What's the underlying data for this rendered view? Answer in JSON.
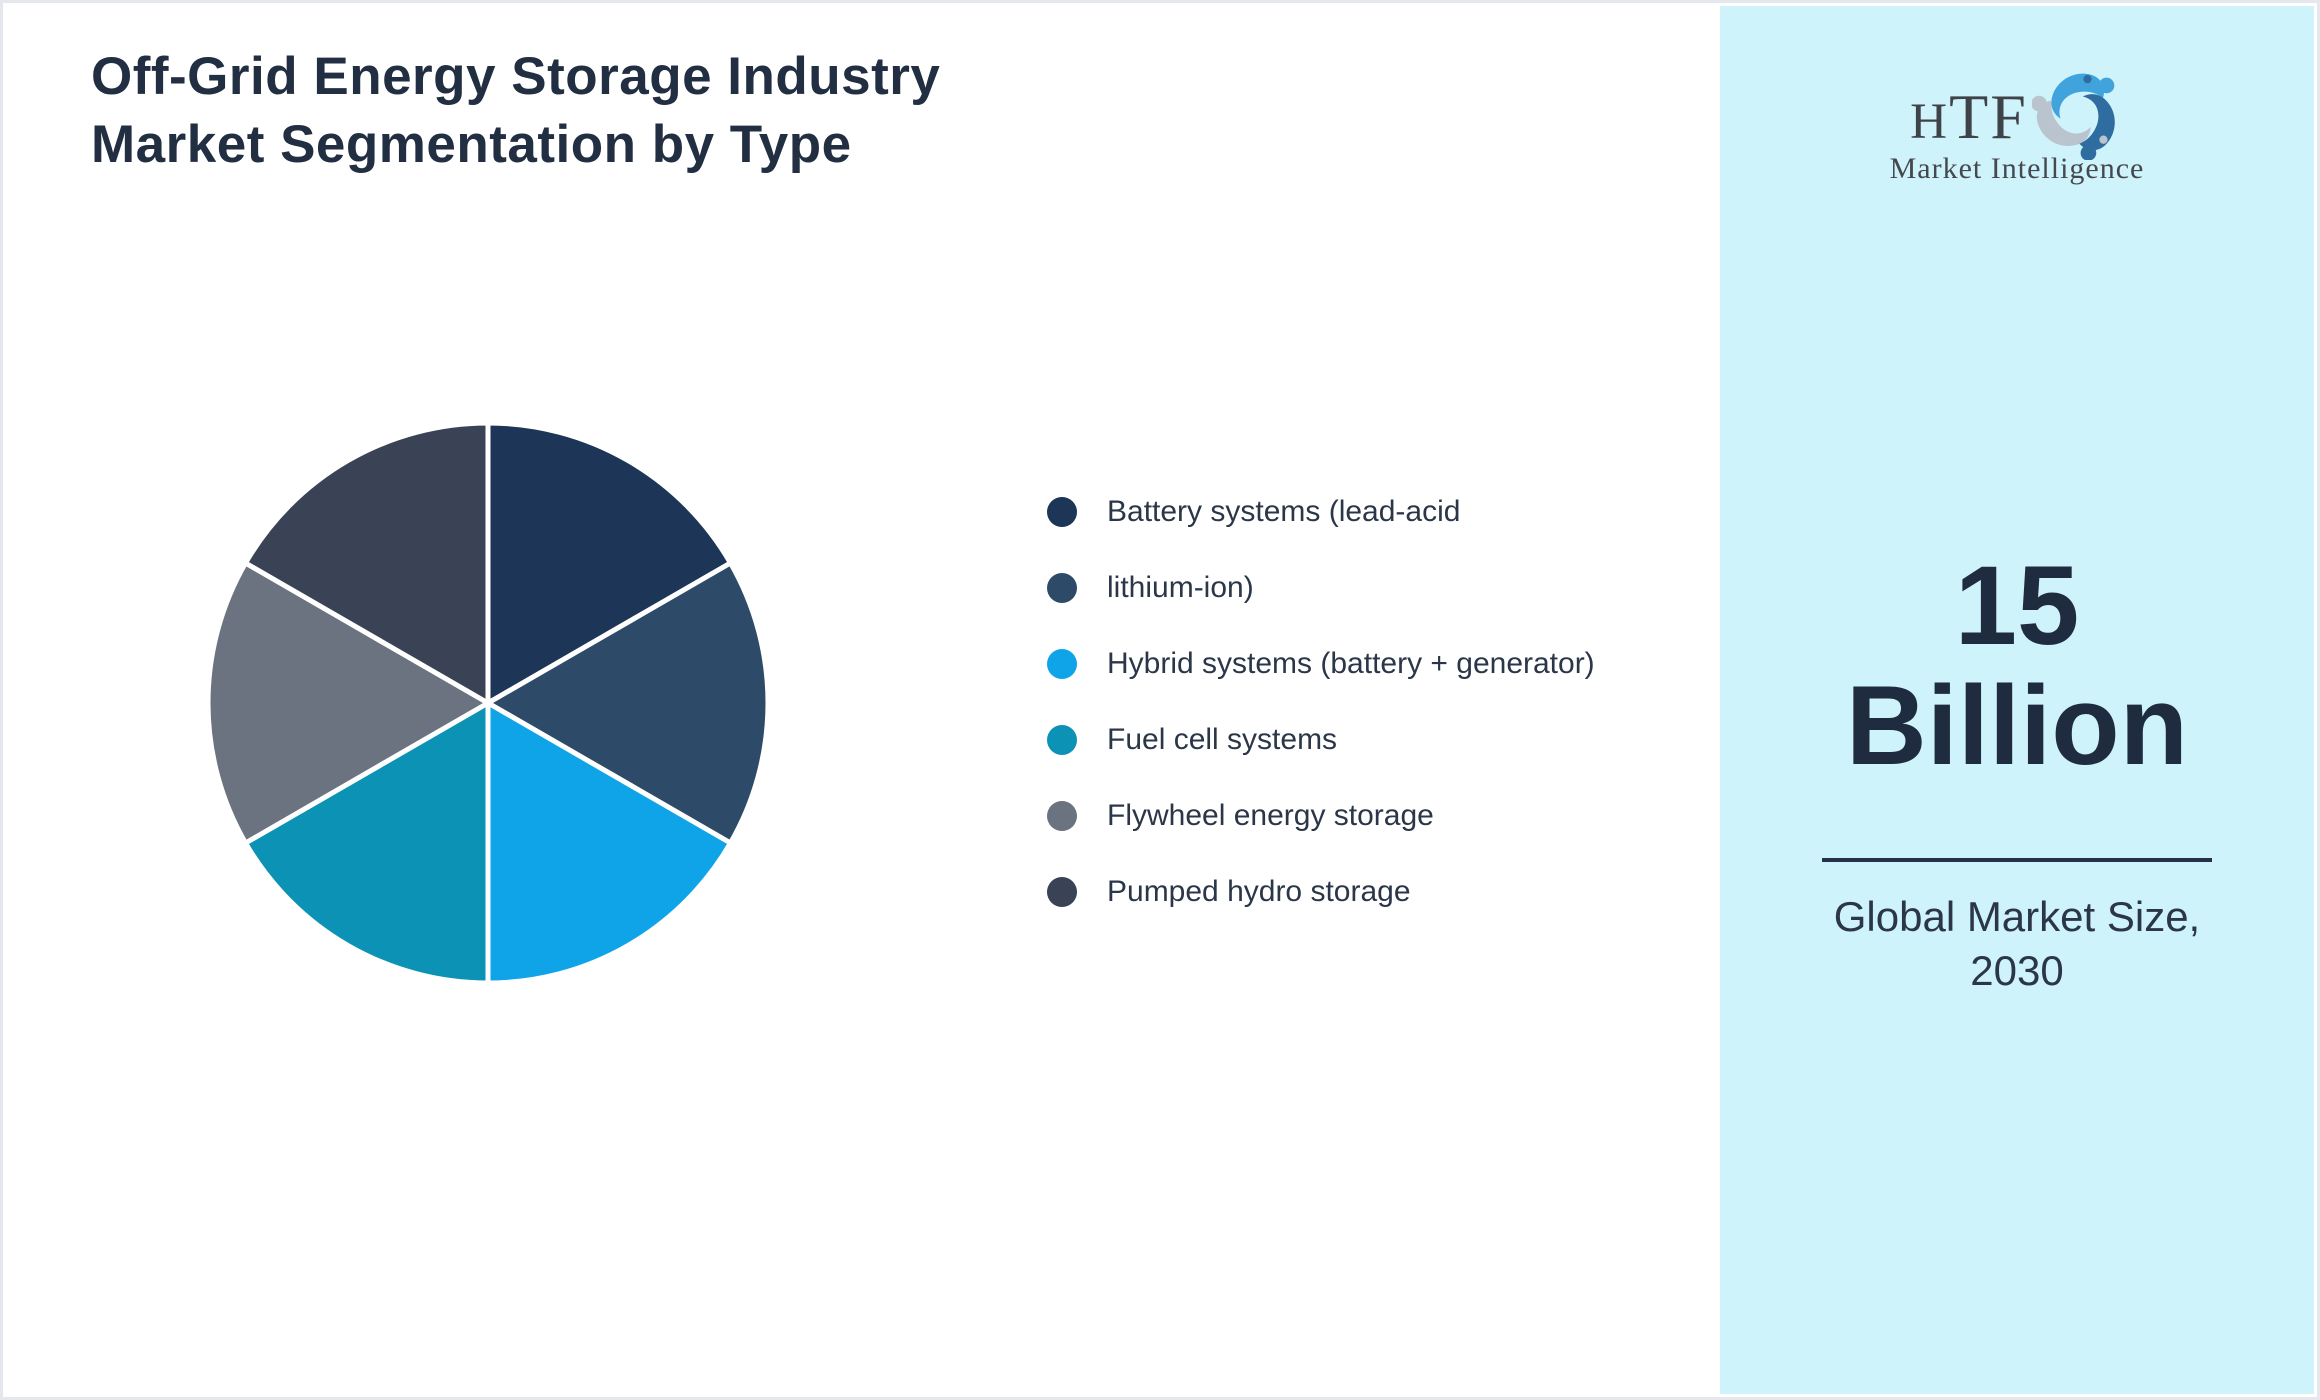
{
  "page": {
    "title_lines": [
      "Off-Grid Energy Storage Industry",
      "Market Segmentation by Type"
    ]
  },
  "chart_data": {
    "type": "pie",
    "title": "Off-Grid Energy Storage Industry Market Segmentation by Type",
    "legend_position": "right",
    "start_angle_deg": 0,
    "direction": "clockwise",
    "slice_border_color": "#FFFFFF",
    "segments": [
      {
        "label": "Battery systems (lead-acid",
        "value": 16.67,
        "color": "#1D3557"
      },
      {
        "label": "lithium-ion)",
        "value": 16.67,
        "color": "#2D4B69"
      },
      {
        "label": "Hybrid systems (battery + generator)",
        "value": 16.67,
        "color": "#0FA4E8"
      },
      {
        "label": "Fuel cell systems",
        "value": 16.67,
        "color": "#0C92B4"
      },
      {
        "label": "Flywheel energy storage",
        "value": 16.67,
        "color": "#6B7380"
      },
      {
        "label": "Pumped hydro storage",
        "value": 16.67,
        "color": "#394355"
      }
    ]
  },
  "sidebar": {
    "background": "#CFF3FA",
    "logo": {
      "text": "HTF",
      "subtext": "Market Intelligence",
      "icon_colors": [
        "#41A3DB",
        "#B9C4CE",
        "#2F6DA0"
      ]
    },
    "stat_lines": [
      "15",
      "Billion"
    ],
    "caption_lines": [
      "Global Market Size,",
      "2030"
    ]
  }
}
